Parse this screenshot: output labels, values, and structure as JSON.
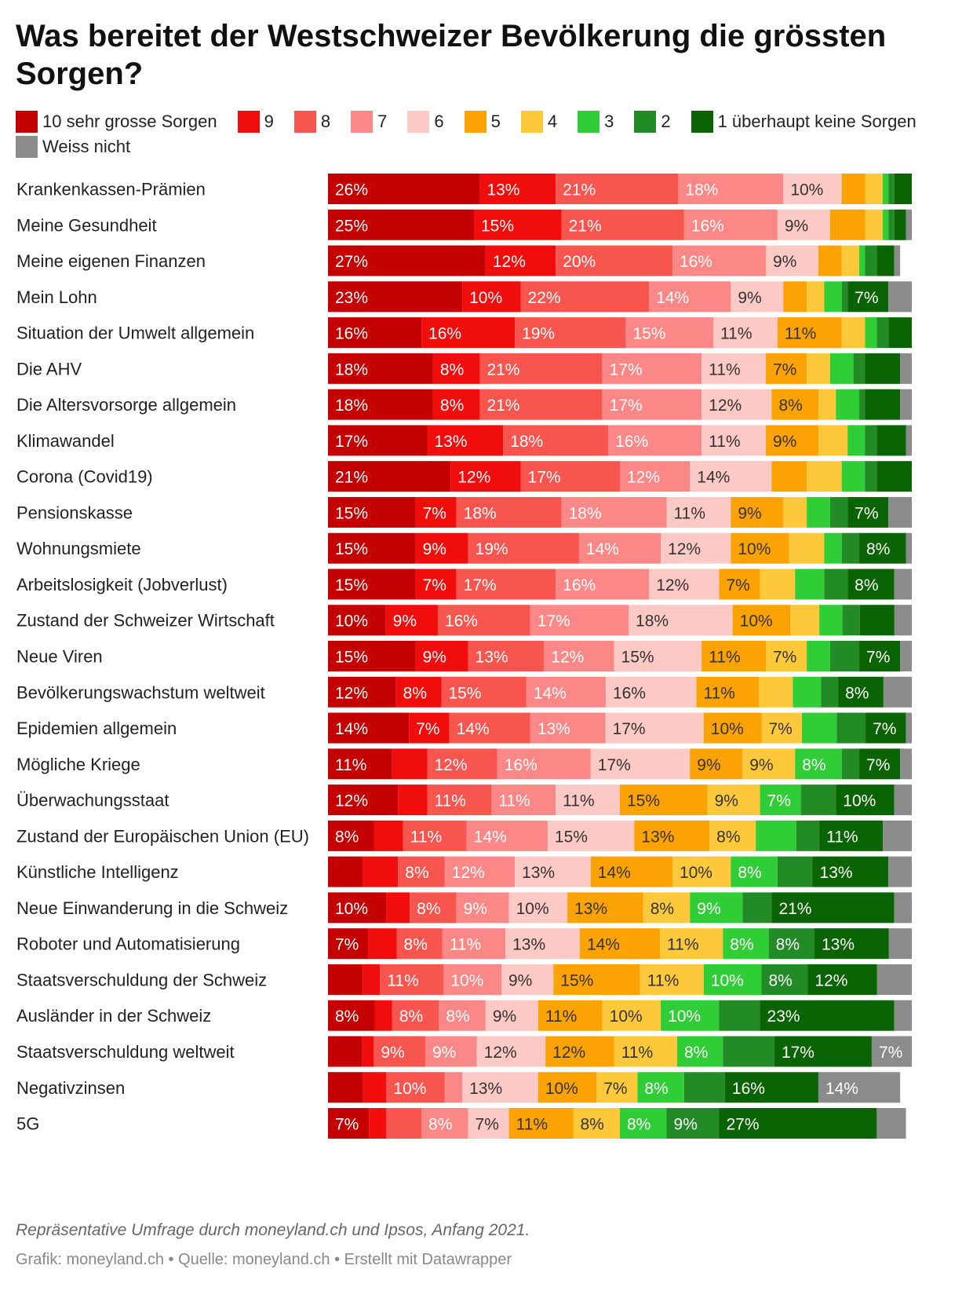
{
  "title": "Was bereitet der Westschweizer Bevölkerung die grössten Sorgen?",
  "notes": "Repräsentative Umfrage durch moneyland.ch und Ipsos, Anfang 2021.",
  "credit": "Grafik: moneyland.ch • Quelle: moneyland.ch • Erstellt mit Datawrapper",
  "colors": {
    "10": "#c40000",
    "9": "#f20d0d",
    "8": "#f9554f",
    "7": "#fb8886",
    "6": "#fcc9c4",
    "5": "#fca202",
    "4": "#fdc83a",
    "3": "#2fcd36",
    "2": "#238b26",
    "1": "#0a6403",
    "weiss_nicht": "#8b8b8b"
  },
  "legend": [
    {
      "key": "10",
      "label": "10 sehr grosse Sorgen",
      "color": "#c40000"
    },
    {
      "key": "9",
      "label": "9",
      "color": "#f20d0d"
    },
    {
      "key": "8",
      "label": "8",
      "color": "#f9554f"
    },
    {
      "key": "7",
      "label": "7",
      "color": "#fb8886"
    },
    {
      "key": "6",
      "label": "6",
      "color": "#fcc9c4"
    },
    {
      "key": "5",
      "label": "5",
      "color": "#fca202"
    },
    {
      "key": "4",
      "label": "4",
      "color": "#fdc83a"
    },
    {
      "key": "3",
      "label": "3",
      "color": "#2fcd36"
    },
    {
      "key": "2",
      "label": "2",
      "color": "#238b26"
    },
    {
      "key": "1",
      "label": "1 überhaupt keine Sorgen",
      "color": "#0a6403"
    },
    {
      "key": "weiss_nicht",
      "label": "Weiss nicht",
      "color": "#8b8b8b"
    }
  ],
  "chart_data": {
    "type": "bar",
    "orientation": "horizontal",
    "stacked": true,
    "unit": "%",
    "legend_position": "top",
    "series": [
      "10 sehr grosse Sorgen",
      "9",
      "8",
      "7",
      "6",
      "5",
      "4",
      "3",
      "2",
      "1 überhaupt keine Sorgen",
      "Weiss nicht"
    ],
    "categories": [
      "Krankenkassen-Prämien",
      "Meine Gesundheit",
      "Meine eigenen Finanzen",
      "Mein Lohn",
      "Situation der Umwelt allgemein",
      "Die AHV",
      "Die Altersvorsorge allgemein",
      "Klimawandel",
      "Corona (Covid19)",
      "Pensionskasse",
      "Wohnungsmiete",
      "Arbeitslosigkeit (Jobverlust)",
      "Zustand der Schweizer Wirtschaft",
      "Neue Viren",
      "Bevölkerungswachstum weltweit",
      "Epidemien allgemein",
      "Mögliche Kriege",
      "Überwachungsstaat",
      "Zustand der Europäischen Union (EU)",
      "Künstliche Intelligenz",
      "Neue Einwanderung in die Schweiz",
      "Roboter und Automatisierung",
      "Staatsverschuldung der Schweiz",
      "Ausländer in der Schweiz",
      "Staatsverschuldung weltweit",
      "Negativzinsen",
      "5G"
    ],
    "values": [
      [
        26,
        13,
        21,
        18,
        10,
        4,
        3,
        1,
        1,
        3,
        0
      ],
      [
        25,
        15,
        21,
        16,
        9,
        6,
        3,
        1,
        1,
        2,
        1
      ],
      [
        27,
        12,
        20,
        16,
        9,
        4,
        3,
        1,
        2,
        3,
        1
      ],
      [
        23,
        10,
        22,
        14,
        9,
        4,
        3,
        3,
        1,
        7,
        4
      ],
      [
        16,
        16,
        19,
        15,
        11,
        11,
        4,
        2,
        2,
        4,
        0
      ],
      [
        18,
        8,
        21,
        17,
        11,
        7,
        4,
        4,
        2,
        6,
        2
      ],
      [
        18,
        8,
        21,
        17,
        12,
        8,
        3,
        4,
        1,
        6,
        2
      ],
      [
        17,
        13,
        18,
        16,
        11,
        9,
        5,
        3,
        2,
        5,
        1
      ],
      [
        21,
        12,
        17,
        12,
        14,
        6,
        6,
        4,
        2,
        6,
        0
      ],
      [
        15,
        7,
        18,
        18,
        11,
        9,
        4,
        4,
        3,
        7,
        4
      ],
      [
        15,
        9,
        19,
        14,
        12,
        10,
        6,
        3,
        3,
        8,
        1
      ],
      [
        15,
        7,
        17,
        16,
        12,
        7,
        6,
        5,
        4,
        8,
        3
      ],
      [
        10,
        9,
        16,
        17,
        18,
        10,
        5,
        4,
        3,
        6,
        3
      ],
      [
        15,
        9,
        13,
        12,
        15,
        11,
        7,
        4,
        5,
        7,
        2
      ],
      [
        12,
        8,
        15,
        14,
        16,
        11,
        6,
        5,
        3,
        8,
        5
      ],
      [
        14,
        7,
        14,
        13,
        17,
        10,
        7,
        6,
        5,
        7,
        1
      ],
      [
        11,
        6,
        12,
        16,
        17,
        9,
        9,
        8,
        3,
        7,
        2
      ],
      [
        12,
        5,
        11,
        11,
        11,
        15,
        9,
        7,
        6,
        10,
        3
      ],
      [
        8,
        5,
        11,
        14,
        15,
        13,
        8,
        7,
        4,
        11,
        5
      ],
      [
        6,
        6,
        8,
        12,
        13,
        14,
        10,
        8,
        6,
        13,
        4
      ],
      [
        10,
        4,
        8,
        9,
        10,
        13,
        8,
        9,
        5,
        21,
        3
      ],
      [
        7,
        5,
        8,
        11,
        13,
        14,
        11,
        8,
        8,
        13,
        4
      ],
      [
        6,
        3,
        11,
        10,
        9,
        15,
        11,
        10,
        8,
        12,
        6
      ],
      [
        8,
        3,
        8,
        8,
        9,
        11,
        10,
        10,
        7,
        23,
        3
      ],
      [
        6,
        2,
        9,
        9,
        12,
        12,
        11,
        8,
        9,
        17,
        7
      ],
      [
        6,
        4,
        10,
        3,
        13,
        10,
        7,
        8,
        7,
        16,
        14
      ],
      [
        7,
        3,
        6,
        8,
        7,
        11,
        8,
        8,
        9,
        27,
        5
      ]
    ],
    "data_labels": [
      [
        "26%",
        "13%",
        "21%",
        "18%",
        "10%",
        "",
        "",
        "",
        "",
        "",
        ""
      ],
      [
        "25%",
        "15%",
        "21%",
        "16%",
        "9%",
        "",
        "",
        "",
        "",
        "",
        ""
      ],
      [
        "27%",
        "12%",
        "20%",
        "16%",
        "9%",
        "",
        "",
        "",
        "",
        "",
        ""
      ],
      [
        "23%",
        "10%",
        "22%",
        "14%",
        "9%",
        "",
        "",
        "",
        "",
        "7%",
        ""
      ],
      [
        "16%",
        "16%",
        "19%",
        "15%",
        "11%",
        "11%",
        "",
        "",
        "",
        "",
        ""
      ],
      [
        "18%",
        "8%",
        "21%",
        "17%",
        "11%",
        "7%",
        "",
        "",
        "",
        "",
        ""
      ],
      [
        "18%",
        "8%",
        "21%",
        "17%",
        "12%",
        "8%",
        "",
        "",
        "",
        "",
        ""
      ],
      [
        "17%",
        "13%",
        "18%",
        "16%",
        "11%",
        "9%",
        "",
        "",
        "",
        "",
        ""
      ],
      [
        "21%",
        "12%",
        "17%",
        "12%",
        "14%",
        "",
        "",
        "",
        "",
        "",
        ""
      ],
      [
        "15%",
        "7%",
        "18%",
        "18%",
        "11%",
        "9%",
        "",
        "",
        "",
        "7%",
        ""
      ],
      [
        "15%",
        "9%",
        "19%",
        "14%",
        "12%",
        "10%",
        "",
        "",
        "",
        "8%",
        ""
      ],
      [
        "15%",
        "7%",
        "17%",
        "16%",
        "12%",
        "7%",
        "",
        "",
        "",
        "8%",
        ""
      ],
      [
        "10%",
        "9%",
        "16%",
        "17%",
        "18%",
        "10%",
        "",
        "",
        "",
        "",
        ""
      ],
      [
        "15%",
        "9%",
        "13%",
        "12%",
        "15%",
        "11%",
        "7%",
        "",
        "",
        "7%",
        ""
      ],
      [
        "12%",
        "8%",
        "15%",
        "14%",
        "16%",
        "11%",
        "",
        "",
        "",
        "8%",
        ""
      ],
      [
        "14%",
        "7%",
        "14%",
        "13%",
        "17%",
        "10%",
        "7%",
        "",
        "",
        "7%",
        ""
      ],
      [
        "11%",
        "",
        "12%",
        "16%",
        "17%",
        "9%",
        "9%",
        "8%",
        "",
        "7%",
        ""
      ],
      [
        "12%",
        "",
        "11%",
        "11%",
        "11%",
        "15%",
        "9%",
        "7%",
        "",
        "10%",
        ""
      ],
      [
        "8%",
        "",
        "11%",
        "14%",
        "15%",
        "13%",
        "8%",
        "",
        "",
        "11%",
        ""
      ],
      [
        "",
        "",
        "8%",
        "12%",
        "13%",
        "14%",
        "10%",
        "8%",
        "",
        "13%",
        ""
      ],
      [
        "10%",
        "",
        "8%",
        "9%",
        "10%",
        "13%",
        "8%",
        "9%",
        "",
        "21%",
        ""
      ],
      [
        "7%",
        "",
        "8%",
        "11%",
        "13%",
        "14%",
        "11%",
        "8%",
        "8%",
        "13%",
        ""
      ],
      [
        "",
        "",
        "11%",
        "10%",
        "9%",
        "15%",
        "11%",
        "10%",
        "8%",
        "12%",
        ""
      ],
      [
        "8%",
        "",
        "8%",
        "8%",
        "9%",
        "11%",
        "10%",
        "10%",
        "",
        "23%",
        ""
      ],
      [
        "",
        "",
        "9%",
        "9%",
        "12%",
        "12%",
        "11%",
        "8%",
        "",
        "17%",
        "7%"
      ],
      [
        "",
        "",
        "10%",
        "",
        "13%",
        "10%",
        "7%",
        "8%",
        "",
        "16%",
        "14%"
      ],
      [
        "7%",
        "",
        "",
        "8%",
        "7%",
        "11%",
        "8%",
        "8%",
        "9%",
        "27%",
        ""
      ]
    ],
    "xlim": [
      0,
      100
    ]
  }
}
